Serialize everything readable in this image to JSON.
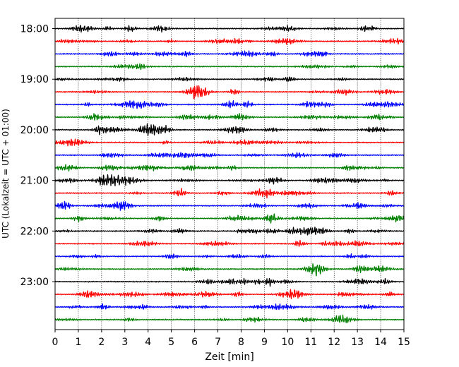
{
  "chart_data": {
    "type": "line",
    "xlabel": "Zeit  [min]",
    "ylabel": "UTC (Lokalzeit = UTC + 01:00)",
    "xlim": [
      0,
      15
    ],
    "xticks": [
      0,
      1,
      2,
      3,
      4,
      5,
      6,
      7,
      8,
      9,
      10,
      11,
      12,
      13,
      14,
      15
    ],
    "x_grid": true,
    "row_interval_min": 15,
    "yticks": [
      "18:00",
      "19:00",
      "20:00",
      "21:00",
      "22:00",
      "23:00"
    ],
    "rows": [
      {
        "start": "18:00",
        "color": "#000000"
      },
      {
        "start": "18:15",
        "color": "#ff0000"
      },
      {
        "start": "18:30",
        "color": "#0000ff"
      },
      {
        "start": "18:45",
        "color": "#008000"
      },
      {
        "start": "19:00",
        "color": "#000000"
      },
      {
        "start": "19:15",
        "color": "#ff0000"
      },
      {
        "start": "19:30",
        "color": "#0000ff"
      },
      {
        "start": "19:45",
        "color": "#008000"
      },
      {
        "start": "20:00",
        "color": "#000000"
      },
      {
        "start": "20:15",
        "color": "#ff0000"
      },
      {
        "start": "20:30",
        "color": "#0000ff"
      },
      {
        "start": "20:45",
        "color": "#008000"
      },
      {
        "start": "21:00",
        "color": "#000000"
      },
      {
        "start": "21:15",
        "color": "#ff0000"
      },
      {
        "start": "21:30",
        "color": "#0000ff"
      },
      {
        "start": "21:45",
        "color": "#008000"
      },
      {
        "start": "22:00",
        "color": "#000000"
      },
      {
        "start": "22:15",
        "color": "#ff0000"
      },
      {
        "start": "22:30",
        "color": "#0000ff"
      },
      {
        "start": "22:45",
        "color": "#008000"
      },
      {
        "start": "23:00",
        "color": "#000000"
      },
      {
        "start": "23:15",
        "color": "#ff0000"
      },
      {
        "start": "23:30",
        "color": "#0000ff"
      },
      {
        "start": "23:45",
        "color": "#008000"
      }
    ]
  }
}
